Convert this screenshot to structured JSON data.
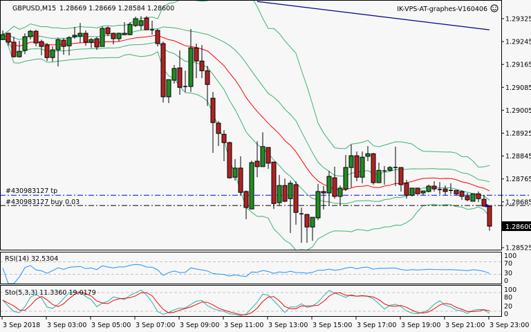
{
  "header": {
    "symbol_tf": "GBPUSD,M15",
    "ohlc": "1.28669 1.28669 1.28584 1.28600",
    "expert": "IK-VPS-AT-graphes-V160406",
    "expert_icon": "smiley-icon"
  },
  "colors": {
    "background": "#f7f7f7",
    "bull": "#228b22",
    "bear": "#b22222",
    "ma": "#ff0000",
    "bands": "#3cb371",
    "trend_line": "#00008b",
    "tp_line": "#0000ff",
    "buy_line": "#000000",
    "rsi": "#1e90ff",
    "stoch_main": "#20b2aa",
    "stoch_signal": "#ff0000"
  },
  "orders": {
    "tp": {
      "label": "#430983127 tp",
      "price": 1.28708
    },
    "buy": {
      "label": "#430983127 buy 0.03",
      "price": 1.28672
    }
  },
  "current_price": "1.28600",
  "price_axis": [
    "1.29325",
    "1.29245",
    "1.29165",
    "1.29085",
    "1.29005",
    "1.28925",
    "1.28845",
    "1.28765",
    "1.28685",
    "1.28525"
  ],
  "time_axis": [
    "3 Sep 2018",
    "3 Sep 03:00",
    "3 Sep 05:00",
    "3 Sep 07:00",
    "3 Sep 09:00",
    "3 Sep 11:00",
    "3 Sep 13:00",
    "3 Sep 15:00",
    "3 Sep 17:00",
    "3 Sep 19:00",
    "3 Sep 21:00",
    "3 Sep 23:00"
  ],
  "rsi": {
    "label": "RSI(14) 32.5304",
    "levels_label": [
      "100",
      "70",
      "30",
      "0"
    ]
  },
  "stoch": {
    "label": "Sto(5,3,3) 11.3360 19.0179",
    "levels_label": [
      "100",
      "80",
      "20",
      "0"
    ]
  },
  "trend_line": {
    "from_bar": 46,
    "from_price": 1.29385,
    "to_bar": 88,
    "to_price": 1.29286
  },
  "chart_data": {
    "type": "candlestick",
    "symbol": "GBPUSD",
    "timeframe": "M15",
    "ylim": [
      1.28525,
      1.294
    ],
    "fields": [
      "open",
      "high",
      "low",
      "close"
    ],
    "candles": [
      [
        1.29252,
        1.29284,
        1.2925,
        1.29269
      ],
      [
        1.29274,
        1.29276,
        1.2923,
        1.29243
      ],
      [
        1.29243,
        1.29262,
        1.29189,
        1.29192
      ],
      [
        1.29192,
        1.29247,
        1.29189,
        1.29211
      ],
      [
        1.29214,
        1.29274,
        1.29201,
        1.29262
      ],
      [
        1.29262,
        1.29286,
        1.29252,
        1.29281
      ],
      [
        1.29281,
        1.29286,
        1.29228,
        1.2924
      ],
      [
        1.29245,
        1.29252,
        1.29197,
        1.29228
      ],
      [
        1.29233,
        1.2924,
        1.29177,
        1.29189
      ],
      [
        1.29189,
        1.29228,
        1.29175,
        1.29216
      ],
      [
        1.29216,
        1.29257,
        1.29158,
        1.29252
      ],
      [
        1.2925,
        1.29257,
        1.29199,
        1.29228
      ],
      [
        1.2923,
        1.29264,
        1.29197,
        1.29259
      ],
      [
        1.29262,
        1.29296,
        1.29255,
        1.29267
      ],
      [
        1.29264,
        1.2931,
        1.2924,
        1.29274
      ],
      [
        1.29274,
        1.29284,
        1.2923,
        1.29243
      ],
      [
        1.29243,
        1.29257,
        1.29223,
        1.29252
      ],
      [
        1.29255,
        1.29262,
        1.29216,
        1.29226
      ],
      [
        1.29228,
        1.29298,
        1.29228,
        1.29291
      ],
      [
        1.29293,
        1.29298,
        1.29264,
        1.29272
      ],
      [
        1.29274,
        1.29276,
        1.29235,
        1.29255
      ],
      [
        1.29255,
        1.29276,
        1.29245,
        1.29274
      ],
      [
        1.29269,
        1.29313,
        1.29267,
        1.29274
      ],
      [
        1.29269,
        1.29313,
        1.29267,
        1.29305
      ],
      [
        1.29301,
        1.29332,
        1.29296,
        1.29325
      ],
      [
        1.29301,
        1.29334,
        1.29286,
        1.29318
      ],
      [
        1.29327,
        1.29334,
        1.29286,
        1.29286
      ],
      [
        1.29286,
        1.29318,
        1.29269,
        1.29284
      ],
      [
        1.29284,
        1.29289,
        1.29228,
        1.29238
      ],
      [
        1.29238,
        1.29245,
        1.29032,
        1.29052
      ],
      [
        1.29052,
        1.29112,
        1.2903,
        1.29112
      ],
      [
        1.2911,
        1.29163,
        1.29098,
        1.29151
      ],
      [
        1.29153,
        1.29214,
        1.29059,
        1.29085
      ],
      [
        1.29088,
        1.29143,
        1.29069,
        1.29088
      ],
      [
        1.29088,
        1.29289,
        1.29069,
        1.29223
      ],
      [
        1.29223,
        1.29238,
        1.29117,
        1.29177
      ],
      [
        1.29177,
        1.29233,
        1.29117,
        1.29143
      ],
      [
        1.29143,
        1.2916,
        1.2902,
        1.29095
      ],
      [
        1.29047,
        1.29069,
        1.28856,
        1.28962
      ],
      [
        1.2896,
        1.28967,
        1.2888,
        1.28924
      ],
      [
        1.28921,
        1.28936,
        1.28827,
        1.28892
      ],
      [
        1.28892,
        1.28895,
        1.28766,
        1.28769
      ],
      [
        1.28771,
        1.28834,
        1.28759,
        1.28803
      ],
      [
        1.28803,
        1.28844,
        1.28708,
        1.28718
      ],
      [
        1.28721,
        1.28725,
        1.28624,
        1.28665
      ],
      [
        1.2866,
        1.28829,
        1.2866,
        1.28822
      ],
      [
        1.28827,
        1.28897,
        1.28771,
        1.28808
      ],
      [
        1.28808,
        1.28928,
        1.28808,
        1.28878
      ],
      [
        1.28875,
        1.28875,
        1.288,
        1.2882
      ],
      [
        1.28824,
        1.28824,
        1.2866,
        1.28679
      ],
      [
        1.28682,
        1.28779,
        1.28672,
        1.28742
      ],
      [
        1.28742,
        1.28766,
        1.28684,
        1.28687
      ],
      [
        1.28696,
        1.28759,
        1.28576,
        1.2875
      ],
      [
        1.28745,
        1.28757,
        1.28605,
        1.28648
      ],
      [
        1.28643,
        1.28665,
        1.28542,
        1.28643
      ],
      [
        1.28641,
        1.28641,
        1.28542,
        1.28597
      ],
      [
        1.28597,
        1.28631,
        1.28549,
        1.28631
      ],
      [
        1.28629,
        1.28747,
        1.28621,
        1.28721
      ],
      [
        1.28721,
        1.2874,
        1.28658,
        1.28716
      ],
      [
        1.28716,
        1.28793,
        1.28672,
        1.28774
      ],
      [
        1.28769,
        1.28808,
        1.28696,
        1.28704
      ],
      [
        1.28704,
        1.28742,
        1.28672,
        1.28733
      ],
      [
        1.2873,
        1.28849,
        1.28723,
        1.28805
      ],
      [
        1.28805,
        1.28885,
        1.28735,
        1.28846
      ],
      [
        1.28846,
        1.28861,
        1.28757,
        1.28771
      ],
      [
        1.28771,
        1.28861,
        1.2875,
        1.28841
      ],
      [
        1.28844,
        1.2888,
        1.28827,
        1.28853
      ],
      [
        1.28853,
        1.28856,
        1.28745,
        1.28752
      ],
      [
        1.28752,
        1.28822,
        1.28752,
        1.28795
      ],
      [
        1.28793,
        1.2881,
        1.28745,
        1.28793
      ],
      [
        1.28795,
        1.2881,
        1.28791,
        1.28805
      ],
      [
        1.28805,
        1.28878,
        1.2874,
        1.28805
      ],
      [
        1.28805,
        1.28805,
        1.28721,
        1.28745
      ],
      [
        1.2875,
        1.28762,
        1.28696,
        1.28708
      ],
      [
        1.28708,
        1.28733,
        1.28704,
        1.28733
      ],
      [
        1.28733,
        1.28733,
        1.28713,
        1.28713
      ],
      [
        1.28716,
        1.28723,
        1.28708,
        1.28723
      ],
      [
        1.28721,
        1.28745,
        1.28718,
        1.2874
      ],
      [
        1.2874,
        1.28757,
        1.28721,
        1.2873
      ],
      [
        1.28728,
        1.28754,
        1.28711,
        1.28728
      ],
      [
        1.2873,
        1.28742,
        1.28708,
        1.28721
      ],
      [
        1.28725,
        1.2875,
        1.28713,
        1.28725
      ],
      [
        1.28725,
        1.28725,
        1.28708,
        1.28713
      ],
      [
        1.28721,
        1.28725,
        1.28692,
        1.28704
      ],
      [
        1.28704,
        1.28716,
        1.28687,
        1.28692
      ],
      [
        1.28687,
        1.28713,
        1.28687,
        1.28713
      ],
      [
        1.28713,
        1.28721,
        1.28684,
        1.28696
      ],
      [
        1.28694,
        1.28708,
        1.28667,
        1.2867
      ],
      [
        1.28669,
        1.28669,
        1.28584,
        1.286
      ]
    ]
  }
}
